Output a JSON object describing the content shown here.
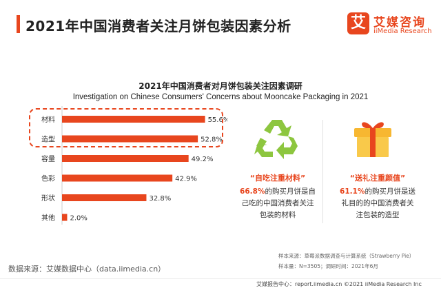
{
  "header": {
    "title": "2021年中国消费者关注月饼包装因素分析"
  },
  "logo": {
    "mark": "艾",
    "name_cn": "艾媒咨询",
    "name_en": "iiMedia Research"
  },
  "chart_data": {
    "type": "bar",
    "orientation": "horizontal",
    "title": "2021年中国消费者对月饼包装关注因素调研",
    "subtitle": "Investigation on Chinese Consumers' Concerns about Mooncake Packaging in 2021",
    "categories": [
      "材料",
      "造型",
      "容量",
      "色彩",
      "形状",
      "其他"
    ],
    "values": [
      55.6,
      52.8,
      49.2,
      42.9,
      32.8,
      2.0
    ],
    "value_labels": [
      "55.6%",
      "52.8%",
      "49.2%",
      "42.9%",
      "32.8%",
      "2.0%"
    ],
    "xlim": [
      0,
      60
    ],
    "unit": "%",
    "bar_color": "#e8461e",
    "highlight_categories": [
      "材料",
      "造型"
    ],
    "highlight_color": "#e8461e"
  },
  "callouts": {
    "left": {
      "icon": "recycle-icon",
      "head": "“自吃注重材料”",
      "num": "66.8%",
      "line1_rest": "的购买月饼是自",
      "line2": "己吃的中国消费者关注",
      "line3": "包装的材料"
    },
    "right": {
      "icon": "gift-box-icon",
      "head": "“送礼注重颜值”",
      "num": "61.1%",
      "line1_rest": "的购买月饼是送",
      "line2": "礼目的的中国消费者关",
      "line3": "注包装的造型"
    }
  },
  "sources": {
    "data_source": "数据来源：艾媒数据中心（data.iimedia.cn）",
    "sample_source": "样本来源：草莓派数据调查与计算系统（Strawberry Pie）",
    "sample_size": "样本量：N=3505；调研时间：2021年6月"
  },
  "footer": {
    "text": "艾媒报告中心：report.iimedia.cn    ©2021  iiMedia Research  Inc"
  },
  "colors": {
    "accent": "#e8461e",
    "recycle_green": "#8dc63f",
    "gift_yellow": "#f7b731"
  }
}
